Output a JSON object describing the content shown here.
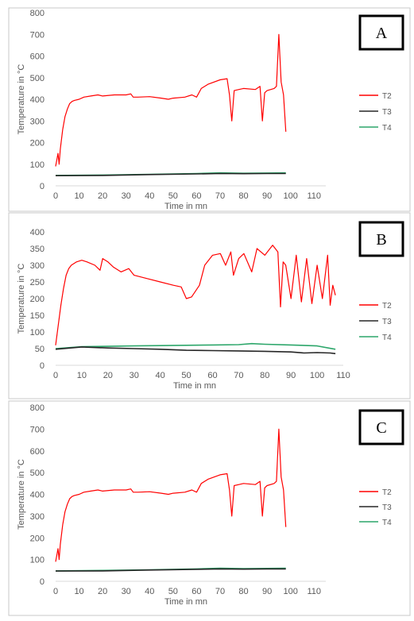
{
  "chart_data": [
    {
      "type": "line",
      "panel_label": "A",
      "xlabel": "Time in mn",
      "ylabel": "Temperature in °C",
      "xlim": [
        0,
        115
      ],
      "ylim": [
        0,
        800
      ],
      "xticks": [
        0,
        10,
        20,
        30,
        40,
        50,
        60,
        70,
        80,
        90,
        100,
        110
      ],
      "yticks": [
        0,
        100,
        200,
        300,
        400,
        500,
        600,
        700,
        800
      ],
      "grid": false,
      "legend_position": "right",
      "series": [
        {
          "name": "T2",
          "color": "#ff0000",
          "x": [
            0,
            1,
            1.5,
            2,
            3,
            4,
            5,
            6,
            7,
            8,
            10,
            12,
            15,
            18,
            20,
            25,
            30,
            32,
            33,
            35,
            40,
            45,
            48,
            50,
            55,
            58,
            60,
            62,
            65,
            70,
            73,
            74,
            75,
            76,
            78,
            80,
            85,
            87,
            88,
            89,
            90,
            93,
            94,
            95,
            96,
            97,
            98
          ],
          "y": [
            90,
            150,
            100,
            170,
            260,
            320,
            355,
            380,
            390,
            395,
            400,
            410,
            415,
            420,
            415,
            420,
            420,
            425,
            410,
            410,
            412,
            405,
            400,
            405,
            410,
            420,
            410,
            450,
            470,
            490,
            495,
            420,
            300,
            440,
            445,
            450,
            445,
            460,
            300,
            430,
            440,
            450,
            460,
            700,
            480,
            420,
            250
          ]
        },
        {
          "name": "T3",
          "color": "#262626",
          "x": [
            0,
            20,
            40,
            60,
            70,
            80,
            90,
            98
          ],
          "y": [
            47,
            48,
            52,
            55,
            57,
            56,
            57,
            57
          ]
        },
        {
          "name": "T4",
          "color": "#2ca66a",
          "x": [
            0,
            20,
            40,
            60,
            70,
            80,
            90,
            98
          ],
          "y": [
            48,
            50,
            53,
            57,
            60,
            58,
            59,
            60
          ]
        }
      ]
    },
    {
      "type": "line",
      "panel_label": "B",
      "xlabel": "Time in mn",
      "ylabel": "Temperature in °C",
      "xlim": [
        0,
        110
      ],
      "ylim": [
        0,
        400
      ],
      "xticks": [
        0,
        10,
        20,
        30,
        40,
        50,
        60,
        70,
        80,
        90,
        100,
        110
      ],
      "yticks": [
        0,
        50,
        100,
        150,
        200,
        250,
        300,
        350,
        400
      ],
      "grid": false,
      "legend_position": "right",
      "series": [
        {
          "name": "T2",
          "color": "#ff0000",
          "x": [
            0,
            1,
            2,
            3,
            4,
            5,
            6,
            8,
            10,
            12,
            15,
            17,
            18,
            20,
            22,
            25,
            28,
            30,
            35,
            40,
            45,
            48,
            50,
            52,
            55,
            57,
            60,
            63,
            65,
            67,
            68,
            70,
            72,
            75,
            77,
            80,
            83,
            85,
            86,
            87,
            88,
            90,
            92,
            94,
            96,
            98,
            100,
            102,
            104,
            105,
            106,
            107
          ],
          "y": [
            60,
            120,
            180,
            230,
            270,
            290,
            300,
            310,
            315,
            310,
            300,
            285,
            320,
            310,
            295,
            280,
            290,
            270,
            260,
            250,
            240,
            235,
            200,
            205,
            240,
            300,
            330,
            335,
            300,
            340,
            270,
            320,
            335,
            280,
            350,
            330,
            360,
            340,
            175,
            310,
            300,
            200,
            330,
            190,
            320,
            185,
            300,
            200,
            330,
            180,
            240,
            210
          ]
        },
        {
          "name": "T3",
          "color": "#262626",
          "x": [
            0,
            10,
            20,
            30,
            40,
            50,
            60,
            70,
            80,
            90,
            95,
            100,
            105,
            107
          ],
          "y": [
            48,
            55,
            52,
            50,
            48,
            45,
            44,
            43,
            42,
            40,
            37,
            38,
            37,
            35
          ]
        },
        {
          "name": "T4",
          "color": "#2ca66a",
          "x": [
            0,
            10,
            20,
            30,
            40,
            50,
            60,
            70,
            75,
            80,
            90,
            100,
            107
          ],
          "y": [
            50,
            56,
            57,
            58,
            59,
            60,
            61,
            62,
            65,
            63,
            61,
            58,
            48
          ]
        }
      ]
    },
    {
      "type": "line",
      "panel_label": "C",
      "xlabel": "Time in mn",
      "ylabel": "Temperature in °C",
      "xlim": [
        0,
        115
      ],
      "ylim": [
        0,
        800
      ],
      "xticks": [
        0,
        10,
        20,
        30,
        40,
        50,
        60,
        70,
        80,
        90,
        100,
        110
      ],
      "yticks": [
        0,
        100,
        200,
        300,
        400,
        500,
        600,
        700,
        800
      ],
      "grid": false,
      "legend_position": "right",
      "series": [
        {
          "name": "T2",
          "color": "#ff0000",
          "x": [
            0,
            1,
            1.5,
            2,
            3,
            4,
            5,
            6,
            7,
            8,
            10,
            12,
            15,
            18,
            20,
            25,
            30,
            32,
            33,
            35,
            40,
            45,
            48,
            50,
            55,
            58,
            60,
            62,
            65,
            70,
            73,
            74,
            75,
            76,
            78,
            80,
            85,
            87,
            88,
            89,
            90,
            93,
            94,
            95,
            96,
            97,
            98
          ],
          "y": [
            90,
            150,
            100,
            170,
            260,
            320,
            355,
            380,
            390,
            395,
            400,
            410,
            415,
            420,
            415,
            420,
            420,
            425,
            410,
            410,
            412,
            405,
            400,
            405,
            410,
            420,
            410,
            450,
            470,
            490,
            495,
            420,
            300,
            440,
            445,
            450,
            445,
            460,
            300,
            430,
            440,
            450,
            460,
            700,
            480,
            420,
            250
          ]
        },
        {
          "name": "T3",
          "color": "#262626",
          "x": [
            0,
            20,
            40,
            60,
            70,
            80,
            90,
            98
          ],
          "y": [
            47,
            48,
            52,
            55,
            57,
            56,
            57,
            57
          ]
        },
        {
          "name": "T4",
          "color": "#2ca66a",
          "x": [
            0,
            20,
            40,
            60,
            70,
            80,
            90,
            98
          ],
          "y": [
            48,
            50,
            53,
            57,
            60,
            58,
            59,
            60
          ]
        }
      ]
    }
  ]
}
